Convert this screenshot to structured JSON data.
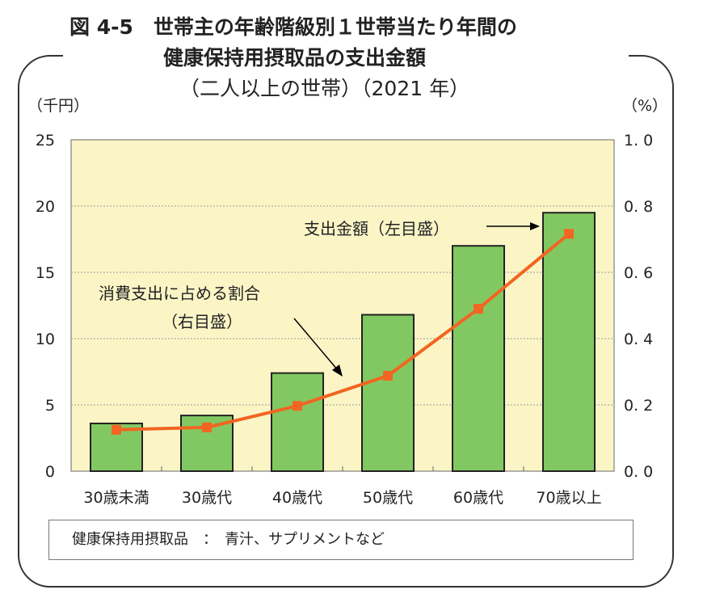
{
  "title": {
    "line1": "図 4-5　世帯主の年齢階級別１世帯当たり年間の",
    "line2": "健康保持用摂取品の支出金額",
    "line3": "（二人以上の世帯）（2021 年）"
  },
  "chart_data": {
    "type": "bar+line",
    "categories": [
      "30歳未満",
      "30歳代",
      "40歳代",
      "50歳代",
      "60歳代",
      "70歳以上"
    ],
    "series": [
      {
        "name": "支出金額（左目盛）",
        "type": "bar",
        "axis": "left",
        "values": [
          3.6,
          4.2,
          7.4,
          11.8,
          17.0,
          19.5
        ],
        "color": "#82c862"
      },
      {
        "name": "消費支出に占める割合（右目盛）",
        "type": "line",
        "axis": "right",
        "values": [
          0.125,
          0.132,
          0.197,
          0.288,
          0.49,
          0.716
        ],
        "color": "#f26522"
      }
    ],
    "ylabel_left": "（千円）",
    "ylabel_right": "（%）",
    "ylim_left": [
      0,
      25
    ],
    "ylim_right": [
      0,
      1.0
    ],
    "yticks_left": [
      "0",
      "5",
      "10",
      "15",
      "20",
      "25"
    ],
    "yticks_right": [
      "0.0",
      "0.2",
      "0.4",
      "0.6",
      "0.8",
      "1.0"
    ],
    "annotation_bar": "支出金額（左目盛）",
    "annotation_line1": "消費支出に占める割合",
    "annotation_line2": "（右目盛）",
    "grid": true,
    "plot_background": "#fbf5c6"
  },
  "note": "健康保持用摂取品　：　青汁、サプリメントなど"
}
